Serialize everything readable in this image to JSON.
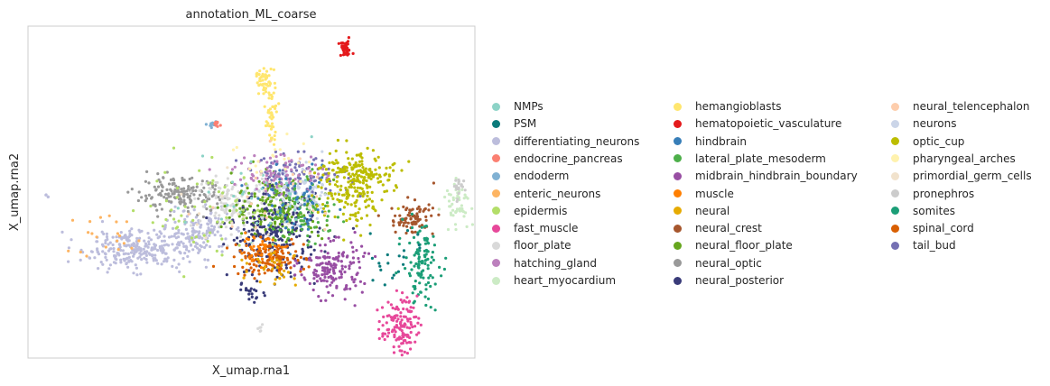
{
  "chart_data": {
    "type": "scatter",
    "title": "annotation_ML_coarse",
    "xlabel": "X_umap.rna1",
    "ylabel": "X_umap.rna2",
    "grid": false,
    "ticks": false,
    "legend_placement": "right, 3 columns",
    "categories": [
      {
        "name": "NMPs",
        "color": "#8dd3c7"
      },
      {
        "name": "PSM",
        "color": "#0b7b7b"
      },
      {
        "name": "differentiating_neurons",
        "color": "#bcbddc"
      },
      {
        "name": "endocrine_pancreas",
        "color": "#fb8072"
      },
      {
        "name": "endoderm",
        "color": "#80b1d3"
      },
      {
        "name": "enteric_neurons",
        "color": "#fdb462"
      },
      {
        "name": "epidermis",
        "color": "#b3de69"
      },
      {
        "name": "fast_muscle",
        "color": "#e7489a"
      },
      {
        "name": "floor_plate",
        "color": "#d9d9d9"
      },
      {
        "name": "hatching_gland",
        "color": "#bc80bd"
      },
      {
        "name": "heart_myocardium",
        "color": "#ccebc5"
      },
      {
        "name": "hemangioblasts",
        "color": "#ffe66e"
      },
      {
        "name": "hematopoietic_vasculature",
        "color": "#e41a1c"
      },
      {
        "name": "hindbrain",
        "color": "#377eb8"
      },
      {
        "name": "lateral_plate_mesoderm",
        "color": "#4daf4a"
      },
      {
        "name": "midbrain_hindbrain_boundary",
        "color": "#984ea3"
      },
      {
        "name": "muscle",
        "color": "#ff7f00"
      },
      {
        "name": "neural",
        "color": "#e6ab02"
      },
      {
        "name": "neural_crest",
        "color": "#a6562d"
      },
      {
        "name": "neural_floor_plate",
        "color": "#66a61e"
      },
      {
        "name": "neural_optic",
        "color": "#999999"
      },
      {
        "name": "neural_posterior",
        "color": "#393b79"
      },
      {
        "name": "neural_telencephalon",
        "color": "#fdcdac"
      },
      {
        "name": "neurons",
        "color": "#cbd5e8"
      },
      {
        "name": "optic_cup",
        "color": "#bcbd00"
      },
      {
        "name": "pharyngeal_arches",
        "color": "#fff2ae"
      },
      {
        "name": "primordial_germ_cells",
        "color": "#f1e2cc"
      },
      {
        "name": "pronephros",
        "color": "#cccccc"
      },
      {
        "name": "somites",
        "color": "#1b9e77"
      },
      {
        "name": "spinal_cord",
        "color": "#d95f02"
      },
      {
        "name": "tail_bud",
        "color": "#7570b3"
      }
    ],
    "clusters": [
      {
        "category": "hematopoietic_vasculature",
        "x": 0.71,
        "y": 0.93,
        "sx": 0.008,
        "sy": 0.012,
        "n": 40
      },
      {
        "category": "hemangioblasts",
        "x": 0.53,
        "y": 0.83,
        "sx": 0.01,
        "sy": 0.02,
        "n": 50
      },
      {
        "category": "hemangioblasts",
        "x": 0.545,
        "y": 0.72,
        "sx": 0.006,
        "sy": 0.04,
        "n": 40
      },
      {
        "category": "endoderm",
        "x": 0.415,
        "y": 0.705,
        "sx": 0.005,
        "sy": 0.006,
        "n": 12
      },
      {
        "category": "endocrine_pancreas",
        "x": 0.425,
        "y": 0.708,
        "sx": 0.004,
        "sy": 0.005,
        "n": 8
      },
      {
        "category": "differentiating_neurons",
        "x": 0.24,
        "y": 0.33,
        "sx": 0.06,
        "sy": 0.03,
        "n": 260
      },
      {
        "category": "differentiating_neurons",
        "x": 0.38,
        "y": 0.38,
        "sx": 0.035,
        "sy": 0.04,
        "n": 140
      },
      {
        "category": "neural_optic",
        "x": 0.34,
        "y": 0.49,
        "sx": 0.05,
        "sy": 0.025,
        "n": 160
      },
      {
        "category": "floor_plate",
        "x": 0.46,
        "y": 0.47,
        "sx": 0.04,
        "sy": 0.04,
        "n": 130
      },
      {
        "category": "neural_floor_plate",
        "x": 0.56,
        "y": 0.45,
        "sx": 0.05,
        "sy": 0.05,
        "n": 230
      },
      {
        "category": "neural_posterior",
        "x": 0.55,
        "y": 0.37,
        "sx": 0.05,
        "sy": 0.06,
        "n": 230
      },
      {
        "category": "neurons",
        "x": 0.61,
        "y": 0.49,
        "sx": 0.04,
        "sy": 0.04,
        "n": 110
      },
      {
        "category": "tail_bud",
        "x": 0.6,
        "y": 0.55,
        "sx": 0.06,
        "sy": 0.03,
        "n": 100
      },
      {
        "category": "hatching_gland",
        "x": 0.56,
        "y": 0.56,
        "sx": 0.05,
        "sy": 0.03,
        "n": 80
      },
      {
        "category": "lateral_plate_mesoderm",
        "x": 0.62,
        "y": 0.44,
        "sx": 0.04,
        "sy": 0.05,
        "n": 70
      },
      {
        "category": "hindbrain",
        "x": 0.6,
        "y": 0.46,
        "sx": 0.04,
        "sy": 0.05,
        "n": 60
      },
      {
        "category": "spinal_cord",
        "x": 0.54,
        "y": 0.3,
        "sx": 0.04,
        "sy": 0.025,
        "n": 130
      },
      {
        "category": "muscle",
        "x": 0.52,
        "y": 0.33,
        "sx": 0.03,
        "sy": 0.02,
        "n": 40
      },
      {
        "category": "neural",
        "x": 0.56,
        "y": 0.28,
        "sx": 0.03,
        "sy": 0.03,
        "n": 30
      },
      {
        "category": "optic_cup",
        "x": 0.72,
        "y": 0.52,
        "sx": 0.04,
        "sy": 0.06,
        "n": 200
      },
      {
        "category": "optic_cup",
        "x": 0.76,
        "y": 0.56,
        "sx": 0.03,
        "sy": 0.02,
        "n": 60
      },
      {
        "category": "midbrain_hindbrain_boundary",
        "x": 0.68,
        "y": 0.27,
        "sx": 0.035,
        "sy": 0.04,
        "n": 160
      },
      {
        "category": "neural_crest",
        "x": 0.86,
        "y": 0.42,
        "sx": 0.025,
        "sy": 0.025,
        "n": 80
      },
      {
        "category": "heart_myocardium",
        "x": 0.96,
        "y": 0.47,
        "sx": 0.015,
        "sy": 0.03,
        "n": 50
      },
      {
        "category": "pronephros",
        "x": 0.965,
        "y": 0.51,
        "sx": 0.01,
        "sy": 0.02,
        "n": 20
      },
      {
        "category": "somites",
        "x": 0.88,
        "y": 0.28,
        "sx": 0.02,
        "sy": 0.06,
        "n": 110
      },
      {
        "category": "fast_muscle",
        "x": 0.83,
        "y": 0.1,
        "sx": 0.02,
        "sy": 0.04,
        "n": 130
      },
      {
        "category": "enteric_neurons",
        "x": 0.17,
        "y": 0.37,
        "sx": 0.04,
        "sy": 0.04,
        "n": 20
      },
      {
        "category": "epidermis",
        "x": 0.42,
        "y": 0.45,
        "sx": 0.08,
        "sy": 0.08,
        "n": 60
      },
      {
        "category": "NMPs",
        "x": 0.5,
        "y": 0.5,
        "sx": 0.07,
        "sy": 0.07,
        "n": 30
      },
      {
        "category": "PSM",
        "x": 0.82,
        "y": 0.3,
        "sx": 0.04,
        "sy": 0.05,
        "n": 20
      },
      {
        "category": "primordial_germ_cells",
        "x": 0.5,
        "y": 0.45,
        "sx": 0.07,
        "sy": 0.07,
        "n": 20
      },
      {
        "category": "neural_telencephalon",
        "x": 0.55,
        "y": 0.48,
        "sx": 0.07,
        "sy": 0.07,
        "n": 20
      },
      {
        "category": "pharyngeal_arches",
        "x": 0.56,
        "y": 0.6,
        "sx": 0.04,
        "sy": 0.04,
        "n": 20
      },
      {
        "category": "neural_posterior",
        "x": 0.5,
        "y": 0.2,
        "sx": 0.015,
        "sy": 0.015,
        "n": 20
      },
      {
        "category": "floor_plate",
        "x": 0.52,
        "y": 0.09,
        "sx": 0.004,
        "sy": 0.01,
        "n": 6
      },
      {
        "category": "differentiating_neurons",
        "x": 0.045,
        "y": 0.49,
        "sx": 0.003,
        "sy": 0.003,
        "n": 4
      }
    ]
  }
}
